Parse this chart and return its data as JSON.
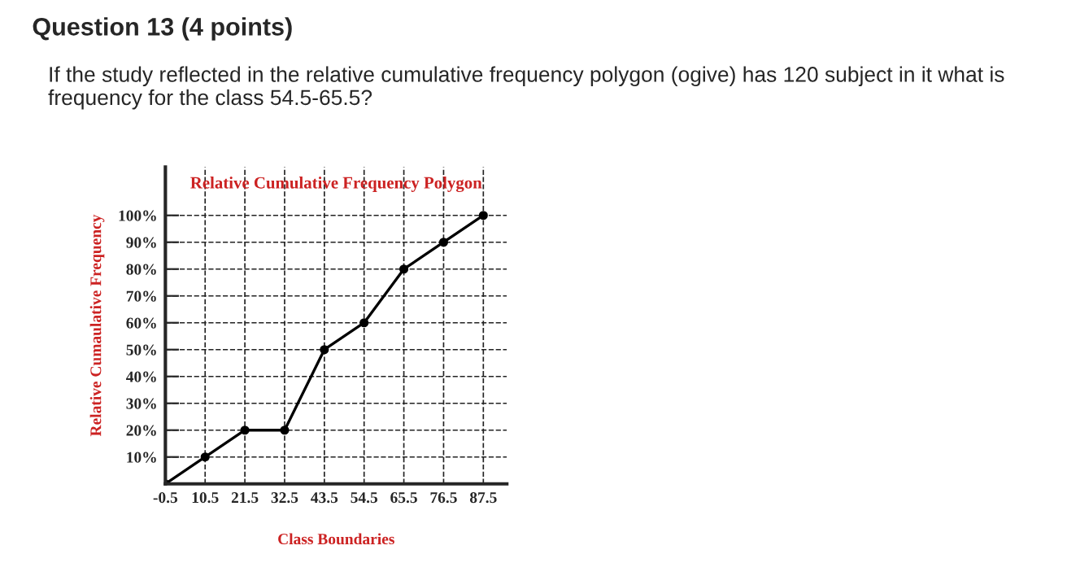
{
  "chart_data": {
    "type": "line",
    "title": "Relative Cumulative Frequency Polygon",
    "xlabel": "Class Boundaries",
    "ylabel": "Relative Cumaulative Frequency",
    "annotations": [
      "Question 13 (4 points)",
      "If the study reflected in the relative cumulative frequency polygon (ogive) has 120 subject in it what is frequency for the class 54.5-65.5?"
    ],
    "x": [
      -0.5,
      10.5,
      21.5,
      32.5,
      43.5,
      54.5,
      65.5,
      76.5,
      87.5
    ],
    "series": [
      {
        "color": "#000000",
        "values": [
          0,
          10,
          20,
          20,
          50,
          60,
          80,
          90,
          100
        ]
      }
    ],
    "xlim": [
      -0.5,
      94
    ],
    "ylim": [
      0,
      118
    ],
    "xticks": [
      -0.5,
      10.5,
      21.5,
      32.5,
      43.5,
      54.5,
      65.5,
      76.5,
      87.5
    ],
    "yticks": [
      {
        "value": 10,
        "label": "10%"
      },
      {
        "value": 20,
        "label": "20%"
      },
      {
        "value": 30,
        "label": "30%"
      },
      {
        "value": 40,
        "label": "40%"
      },
      {
        "value": 50,
        "label": "50%"
      },
      {
        "value": 60,
        "label": "60%"
      },
      {
        "value": 70,
        "label": "70%"
      },
      {
        "value": 80,
        "label": "80%"
      },
      {
        "value": 90,
        "label": "90%"
      },
      {
        "value": 100,
        "label": "100%"
      }
    ],
    "grid": true,
    "marker": "circle",
    "line_style": "solid",
    "legend": false
  }
}
